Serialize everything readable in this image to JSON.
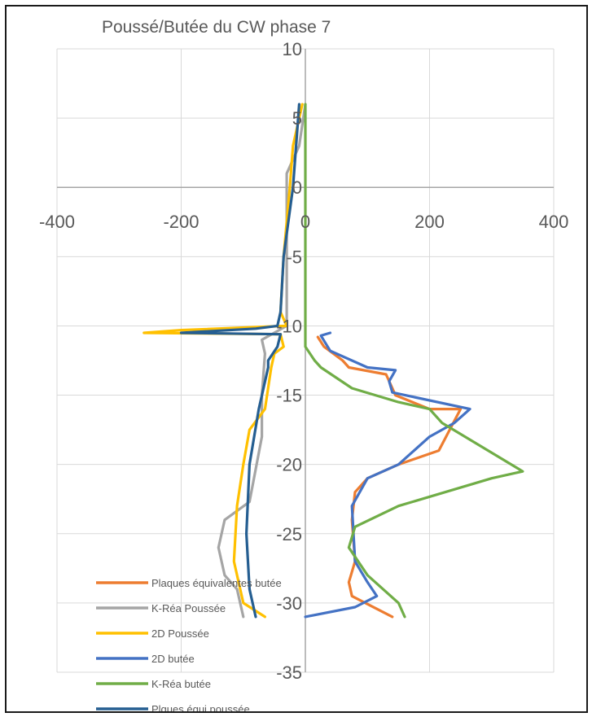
{
  "chart_data": {
    "type": "line",
    "title": "Poussé/Butée du CW phase 7",
    "xlabel": "",
    "ylabel": "",
    "xlim": [
      -400,
      400
    ],
    "ylim": [
      -35,
      10
    ],
    "x_ticks": [
      -400,
      -200,
      0,
      200,
      400
    ],
    "y_ticks": [
      10,
      5,
      0,
      -5,
      -10,
      -15,
      -20,
      -25,
      -30,
      -35
    ],
    "x_tick_labels": [
      "-400",
      "-200",
      "0",
      "200",
      "400"
    ],
    "y_tick_labels": [
      "10",
      "5",
      "0",
      "-5",
      "-10",
      "-15",
      "-20",
      "-25",
      "-30",
      "-35"
    ],
    "grid": "on",
    "legend_position": "bottom-left",
    "series": [
      {
        "name": "Plaques équivalentes butée",
        "color": "#ED7D31",
        "points": [
          [
            20,
            -10.8
          ],
          [
            30,
            -11.5
          ],
          [
            60,
            -12.5
          ],
          [
            70,
            -13
          ],
          [
            130,
            -13.5
          ],
          [
            140,
            -14.5
          ],
          [
            145,
            -15
          ],
          [
            200,
            -16
          ],
          [
            250,
            -16
          ],
          [
            215,
            -19
          ],
          [
            150,
            -20
          ],
          [
            100,
            -21
          ],
          [
            80,
            -22
          ],
          [
            75,
            -24
          ],
          [
            80,
            -27
          ],
          [
            70,
            -28.5
          ],
          [
            75,
            -29.5
          ],
          [
            140,
            -31
          ]
        ]
      },
      {
        "name": "K-Réa Poussée",
        "color": "#A5A5A5",
        "points": [
          [
            0,
            6
          ],
          [
            -10,
            3
          ],
          [
            -30,
            1
          ],
          [
            -30,
            -10
          ],
          [
            -70,
            -11
          ],
          [
            -65,
            -12
          ],
          [
            -70,
            -15
          ],
          [
            -70,
            -18
          ],
          [
            -90,
            -22.7
          ],
          [
            -130,
            -24
          ],
          [
            -140,
            -26
          ],
          [
            -130,
            -28
          ],
          [
            -110,
            -29
          ],
          [
            -100,
            -31
          ]
        ]
      },
      {
        "name": "2D Poussée",
        "color": "#FFC000",
        "points": [
          [
            -5,
            6
          ],
          [
            -20,
            3
          ],
          [
            -25,
            0
          ],
          [
            -35,
            -5
          ],
          [
            -40,
            -9
          ],
          [
            -30,
            -10
          ],
          [
            -200,
            -10.3
          ],
          [
            -260,
            -10.5
          ],
          [
            -40,
            -10.6
          ],
          [
            -35,
            -11.5
          ],
          [
            -50,
            -12
          ],
          [
            -55,
            -13
          ],
          [
            -65,
            -16
          ],
          [
            -90,
            -17.5
          ],
          [
            -100,
            -20
          ],
          [
            -110,
            -23
          ],
          [
            -115,
            -27
          ],
          [
            -100,
            -30
          ],
          [
            -65,
            -31
          ]
        ]
      },
      {
        "name": "2D butée",
        "color": "#4472C4",
        "points": [
          [
            40,
            -10.5
          ],
          [
            25,
            -10.7
          ],
          [
            40,
            -11.8
          ],
          [
            100,
            -13
          ],
          [
            145,
            -13.2
          ],
          [
            135,
            -14
          ],
          [
            140,
            -14.8
          ],
          [
            265,
            -16
          ],
          [
            240,
            -17
          ],
          [
            200,
            -18
          ],
          [
            150,
            -20
          ],
          [
            100,
            -21
          ],
          [
            75,
            -23
          ],
          [
            80,
            -27
          ],
          [
            100,
            -28.5
          ],
          [
            115,
            -29.5
          ],
          [
            80,
            -30.3
          ],
          [
            0,
            -31
          ]
        ]
      },
      {
        "name": "K-Réa butée",
        "color": "#70AD47",
        "points": [
          [
            0,
            6
          ],
          [
            0,
            -11.5
          ],
          [
            15,
            -12.5
          ],
          [
            25,
            -13
          ],
          [
            75,
            -14.5
          ],
          [
            150,
            -15.5
          ],
          [
            200,
            -16
          ],
          [
            220,
            -17
          ],
          [
            350,
            -20.5
          ],
          [
            300,
            -21
          ],
          [
            150,
            -23
          ],
          [
            80,
            -24.5
          ],
          [
            70,
            -26
          ],
          [
            100,
            -28
          ],
          [
            150,
            -30
          ],
          [
            160,
            -31
          ]
        ]
      },
      {
        "name": "Plques équi poussée",
        "color": "#255E91",
        "points": [
          [
            -10,
            6
          ],
          [
            -15,
            3
          ],
          [
            -20,
            0
          ],
          [
            -35,
            -5
          ],
          [
            -40,
            -9
          ],
          [
            -45,
            -10
          ],
          [
            -80,
            -10.2
          ],
          [
            -200,
            -10.5
          ],
          [
            -40,
            -10.6
          ],
          [
            -45,
            -11.5
          ],
          [
            -60,
            -12.5
          ],
          [
            -60,
            -13
          ],
          [
            -75,
            -16
          ],
          [
            -90,
            -20
          ],
          [
            -95,
            -25
          ],
          [
            -90,
            -29
          ],
          [
            -80,
            -31
          ]
        ]
      }
    ]
  }
}
